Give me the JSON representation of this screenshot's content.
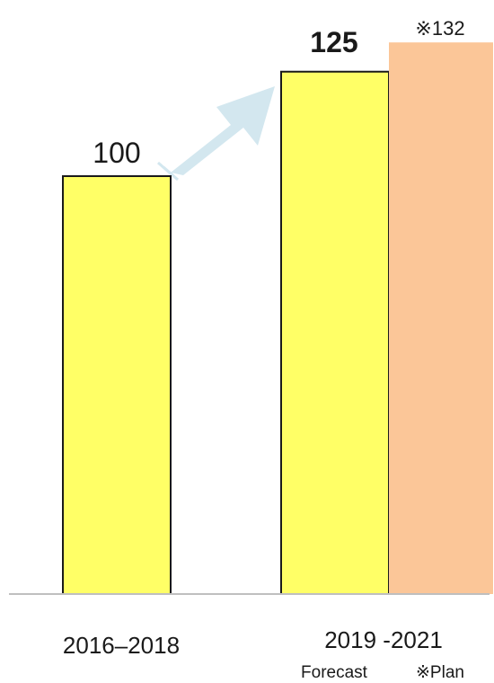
{
  "chart_data": {
    "type": "bar",
    "categories": [
      "2016–2018",
      "2019 -2021"
    ],
    "series": [
      {
        "name": "Forecast",
        "values": [
          100,
          125
        ]
      },
      {
        "name": "※Plan",
        "values": [
          null,
          132
        ]
      }
    ],
    "data_labels": {
      "bar_2016": "100",
      "bar_forecast": "125",
      "bar_plan": "※132"
    },
    "subcategory_labels": {
      "forecast": "Forecast",
      "plan": "※Plan"
    },
    "ylim": [
      0,
      132
    ],
    "title": "",
    "xlabel": "",
    "ylabel": "",
    "grid": false,
    "legend": "none",
    "colors": {
      "forecast_fill": "#ffff66",
      "plan_fill": "#fbc698",
      "bar_stroke": "#1a1a1a",
      "arrow_fill": "#d3e7ef",
      "baseline": "#bfbfbf"
    }
  }
}
